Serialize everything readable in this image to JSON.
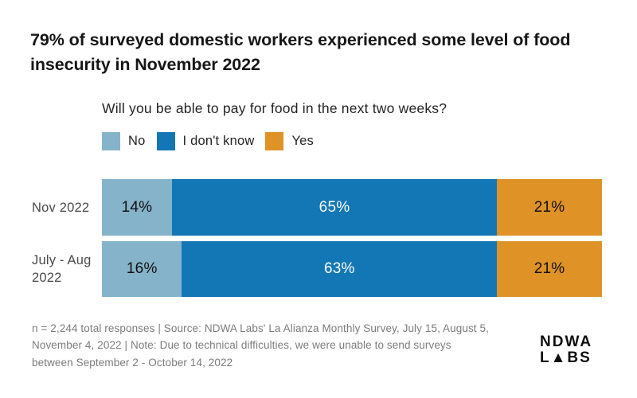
{
  "header": {
    "title": "79% of surveyed domestic workers experienced some level of food insecurity in November 2022"
  },
  "chart_data": {
    "type": "bar",
    "orientation": "horizontal",
    "stacked": true,
    "question": "Will you be able to pay for food in the next two weeks?",
    "categories": [
      "Nov 2022",
      "July - Aug 2022"
    ],
    "categories_display": [
      [
        "Nov 2022"
      ],
      [
        "July - Aug",
        "2022"
      ]
    ],
    "series": [
      {
        "name": "No",
        "color": "#85B3C9",
        "label_color": "#111111",
        "values": [
          14,
          16
        ]
      },
      {
        "name": "I don't know",
        "color": "#1277B4",
        "label_color": "#ffffff",
        "values": [
          65,
          63
        ]
      },
      {
        "name": "Yes",
        "color": "#DF9226",
        "label_color": "#111111",
        "values": [
          21,
          21
        ]
      }
    ],
    "value_suffix": "%",
    "xlim": [
      0,
      100
    ],
    "grid": false,
    "legend_position": "top-left"
  },
  "footer": {
    "lines": [
      "n = 2,244 total responses  |  Source: NDWA Labs' La Alianza Monthly Survey, July 15, August 5,",
      "November 4, 2022 | Note: Due to technical difficulties, we were unable to send surveys",
      "between September 2 - October 14, 2022"
    ],
    "logo": {
      "line1": "NDWA",
      "line2": "L▲BS"
    }
  }
}
